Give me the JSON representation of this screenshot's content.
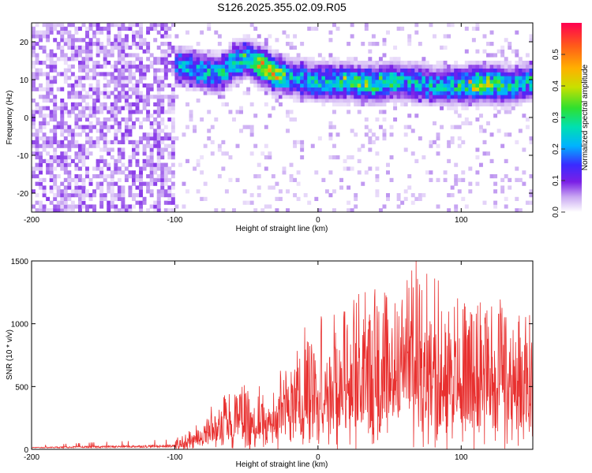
{
  "figure": {
    "title": "S126.2025.355.02.09.R05"
  },
  "chart_data": [
    {
      "type": "heatmap",
      "xlabel": "Height of straight line (km)",
      "ylabel": "Frequency (Hz)",
      "xlim": [
        -200,
        150
      ],
      "ylim": [
        -25,
        25
      ],
      "xticks": [
        -200,
        -100,
        0,
        100
      ],
      "yticks": [
        -20,
        -10,
        0,
        10,
        20
      ],
      "colorbar": {
        "label": "Normalized spectral amplitude",
        "range": [
          0,
          0.6
        ],
        "ticks": [
          "0.0",
          "0.1",
          "0.2",
          "0.3",
          "0.4",
          "0.5"
        ],
        "colors": [
          "#ffffff",
          "#c9a8f2",
          "#7a1fe6",
          "#3a2bff",
          "#00b3ff",
          "#00e0b0",
          "#2fe02f",
          "#c8e000",
          "#ffb000",
          "#ff5a1a",
          "#ff0050"
        ]
      },
      "background_noise": {
        "x_range": [
          -200,
          -100
        ],
        "freq_range": [
          -25,
          25
        ],
        "level": 0.06
      },
      "ridge": {
        "x": [
          -100,
          -90,
          -80,
          -70,
          -60,
          -50,
          -40,
          -30,
          -20,
          -10,
          0,
          10,
          20,
          30,
          40,
          50,
          60,
          70,
          80,
          90,
          100,
          110,
          120,
          130,
          140,
          150
        ],
        "freq_hz": [
          13,
          12.5,
          11.5,
          11,
          14,
          15,
          13,
          11,
          10,
          9.5,
          9,
          9,
          9,
          8.5,
          8.5,
          9,
          9,
          8.5,
          8,
          8,
          8,
          8.5,
          8.5,
          8,
          8.5,
          9.5
        ],
        "peak_amplitude": [
          0.25,
          0.3,
          0.3,
          0.3,
          0.35,
          0.35,
          0.5,
          0.45,
          0.3,
          0.3,
          0.3,
          0.35,
          0.35,
          0.4,
          0.4,
          0.35,
          0.3,
          0.3,
          0.3,
          0.3,
          0.35,
          0.45,
          0.4,
          0.35,
          0.3,
          0.3
        ]
      }
    },
    {
      "type": "line",
      "xlabel": "Height of straight line (km)",
      "ylabel": "SNR (10 * v/v)",
      "xlim": [
        -200,
        150
      ],
      "ylim": [
        0,
        1500
      ],
      "xticks": [
        -200,
        -100,
        0,
        100
      ],
      "yticks": [
        0,
        500,
        1000,
        1500
      ],
      "color": "#e8302f",
      "envelope": {
        "x": [
          -200,
          -150,
          -100,
          -90,
          -80,
          -70,
          -60,
          -50,
          -40,
          -30,
          -20,
          -10,
          0,
          10,
          20,
          30,
          40,
          50,
          60,
          70,
          80,
          90,
          100,
          110,
          120,
          130,
          140,
          150
        ],
        "base": [
          10,
          12,
          15,
          30,
          60,
          90,
          120,
          120,
          110,
          140,
          180,
          200,
          280,
          330,
          350,
          340,
          350,
          360,
          370,
          380,
          370,
          350,
          330,
          300,
          280,
          260,
          240,
          220
        ],
        "peak": [
          30,
          60,
          80,
          150,
          250,
          420,
          520,
          530,
          480,
          560,
          700,
          980,
          1000,
          1100,
          1200,
          1250,
          1300,
          1350,
          1400,
          1500,
          1450,
          1300,
          1300,
          1280,
          1250,
          1150,
          1100,
          1050
        ]
      }
    }
  ]
}
